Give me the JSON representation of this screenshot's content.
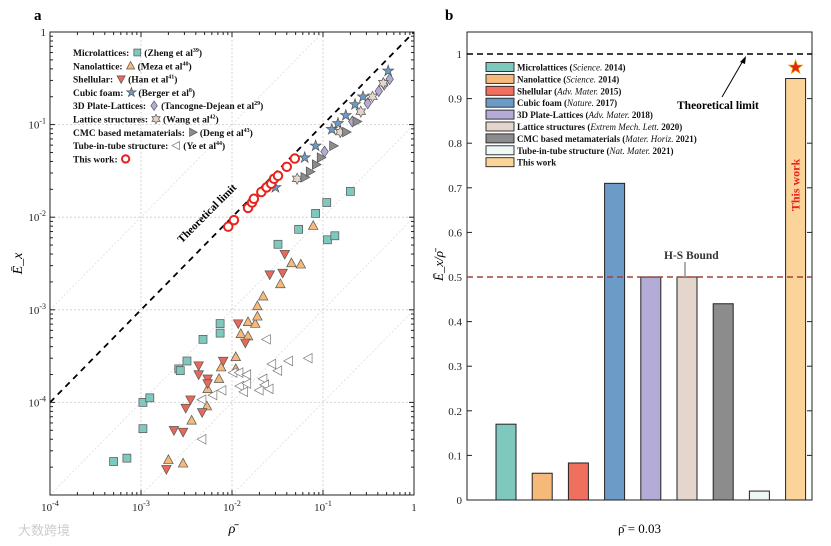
{
  "watermark": "大数跨境",
  "chart_data": [
    {
      "panel": "a",
      "type": "scatter",
      "xscale": "log",
      "yscale": "log",
      "xlim": [
        0.0001,
        1
      ],
      "ylim": [
        1e-05,
        1
      ],
      "xlabel": "ρ̄",
      "ylabel": "Ē_x",
      "xticks": [
        "10^-4",
        "10^-3",
        "10^-2",
        "10^-1",
        "1"
      ],
      "yticks": [
        "10^-4",
        "10^-3",
        "10^-2",
        "10^-1",
        "1"
      ],
      "grid": true,
      "reference_line": {
        "label": "Theoretical limit",
        "equation": "E = ρ"
      },
      "legend_placement": "top-left",
      "series": [
        {
          "name": "Microlattices:",
          "ref": "(Zheng et al",
          "sup": "39",
          "marker": "square",
          "color": "#7fc8bd",
          "points": [
            [
              0.0005,
              2.3e-05
            ],
            [
              0.0007,
              2.5e-05
            ],
            [
              0.00105,
              5.2e-05
            ],
            [
              0.00105,
              0.0001
            ],
            [
              0.00125,
              0.000112
            ],
            [
              0.0026,
              0.00023
            ],
            [
              0.0027,
              0.00022
            ],
            [
              0.0032,
              0.00028
            ],
            [
              0.0048,
              0.00048
            ],
            [
              0.0074,
              0.00056
            ],
            [
              0.0074,
              0.00071
            ],
            [
              0.032,
              0.0051
            ],
            [
              0.054,
              0.0074
            ],
            [
              0.083,
              0.011
            ],
            [
              0.11,
              0.0144
            ],
            [
              0.112,
              0.0057
            ],
            [
              0.135,
              0.0063
            ],
            [
              0.2,
              0.019
            ]
          ]
        },
        {
          "name": "Nanolattice:",
          "ref": "(Meza et al",
          "sup": "40",
          "marker": "triangle-up",
          "color": "#f5b97a",
          "points": [
            [
              0.002,
              2.4e-05
            ],
            [
              0.0029,
              2.2e-05
            ],
            [
              0.0036,
              6.4e-05
            ],
            [
              0.0053,
              9.1e-05
            ],
            [
              0.0054,
              0.00014
            ],
            [
              0.0072,
              0.00018
            ],
            [
              0.0076,
              0.00024
            ],
            [
              0.011,
              0.00031
            ],
            [
              0.011,
              0.00023
            ],
            [
              0.0125,
              0.00055
            ],
            [
              0.015,
              0.00052
            ],
            [
              0.015,
              0.00074
            ],
            [
              0.018,
              0.00071
            ],
            [
              0.019,
              0.00085
            ],
            [
              0.019,
              0.0011
            ],
            [
              0.022,
              0.0014
            ],
            [
              0.034,
              0.0019
            ],
            [
              0.045,
              0.0032
            ],
            [
              0.057,
              0.0031
            ],
            [
              0.078,
              0.0081
            ]
          ]
        },
        {
          "name": "Shellular:",
          "ref": "(Han et al",
          "sup": "41",
          "marker": "triangle-down",
          "color": "#e8685a",
          "points": [
            [
              0.0019,
              1.9e-05
            ],
            [
              0.0023,
              5e-05
            ],
            [
              0.0029,
              4.8e-05
            ],
            [
              0.0031,
              8.7e-05
            ],
            [
              0.0035,
              0.000107
            ],
            [
              0.0047,
              7.8e-05
            ],
            [
              0.0043,
              0.00025
            ],
            [
              0.0043,
              0.0002
            ],
            [
              0.0054,
              0.00018
            ],
            [
              0.0054,
              0.00016
            ],
            [
              0.008,
              0.00028
            ],
            [
              0.0117,
              0.00071
            ],
            [
              0.014,
              0.00044
            ],
            [
              0.026,
              0.0024
            ],
            [
              0.036,
              0.0025
            ],
            [
              0.038,
              0.004
            ]
          ]
        },
        {
          "name": "Cubic foam:",
          "ref": "(Berger et al",
          "sup": "8",
          "marker": "star5",
          "color": "#6c9bc8",
          "points": [
            [
              0.03,
              0.021
            ],
            [
              0.063,
              0.044
            ],
            [
              0.083,
              0.059
            ],
            [
              0.125,
              0.089
            ],
            [
              0.146,
              0.103
            ],
            [
              0.178,
              0.126
            ],
            [
              0.225,
              0.165
            ],
            [
              0.275,
              0.2
            ],
            [
              0.52,
              0.38
            ]
          ]
        },
        {
          "name": "3D Plate-Lattices:",
          "ref": "(Tancogne-Dejean et al",
          "sup": "29",
          "marker": "diamond",
          "color": "#b4acd6",
          "points": [
            [
              0.104,
              0.051
            ],
            [
              0.21,
              0.108
            ],
            [
              0.31,
              0.17
            ],
            [
              0.41,
              0.23
            ],
            [
              0.47,
              0.27
            ],
            [
              0.54,
              0.31
            ]
          ]
        },
        {
          "name": "Lattice structures:",
          "ref": "(Wang et al",
          "sup": "42",
          "marker": "star6",
          "color": "#e4d6cc",
          "points": [
            [
              0.052,
              0.026
            ],
            [
              0.155,
              0.083
            ],
            [
              0.26,
              0.138
            ],
            [
              0.35,
              0.2
            ],
            [
              0.46,
              0.28
            ]
          ]
        },
        {
          "name": "CMC based metamaterials:",
          "ref": "(Deng et al",
          "sup": "43",
          "marker": "triangle-right",
          "color": "#8c8c8c",
          "points": [
            [
              0.063,
              0.027
            ],
            [
              0.072,
              0.031
            ],
            [
              0.084,
              0.037
            ],
            [
              0.095,
              0.044
            ],
            [
              0.13,
              0.059
            ],
            [
              0.18,
              0.083
            ],
            [
              0.235,
              0.108
            ]
          ]
        },
        {
          "name": "Tube-in-tube structure:",
          "ref": "(Ye et al",
          "sup": "44",
          "marker": "triangle-left",
          "color": "#ffffff",
          "points": [
            [
              0.0047,
              4e-05
            ],
            [
              0.0047,
              0.000107
            ],
            [
              0.0062,
              0.00012
            ],
            [
              0.0078,
              0.000135
            ],
            [
              0.0103,
              0.00021
            ],
            [
              0.012,
              0.00021
            ],
            [
              0.0146,
              0.0002
            ],
            [
              0.0122,
              0.00015
            ],
            [
              0.0146,
              0.00016
            ],
            [
              0.0135,
              0.00013
            ],
            [
              0.02,
              0.000135
            ],
            [
              0.022,
              0.00018
            ],
            [
              0.023,
              0.000155
            ],
            [
              0.0257,
              0.00014
            ],
            [
              0.024,
              0.00048
            ],
            [
              0.0275,
              0.00026
            ],
            [
              0.032,
              0.00022
            ],
            [
              0.042,
              0.00028
            ],
            [
              0.069,
              0.0003
            ]
          ]
        },
        {
          "name": "This work:",
          "ref": "",
          "sup": "",
          "marker": "circle",
          "color": "#e8231b",
          "points": [
            [
              0.0091,
              0.0079
            ],
            [
              0.0105,
              0.0093
            ],
            [
              0.015,
              0.0126
            ],
            [
              0.0166,
              0.0144
            ],
            [
              0.0174,
              0.0158
            ],
            [
              0.021,
              0.0187
            ],
            [
              0.024,
              0.021
            ],
            [
              0.027,
              0.023
            ],
            [
              0.029,
              0.026
            ],
            [
              0.032,
              0.028
            ],
            [
              0.04,
              0.035
            ],
            [
              0.049,
              0.043
            ]
          ]
        }
      ]
    },
    {
      "panel": "b",
      "type": "bar",
      "xlabel": "ρ̄ = 0.03",
      "ylabel": "Ē_x/ρ̄",
      "ylim": [
        0,
        1.02
      ],
      "yticks": [
        "0",
        "0.1",
        "0.2",
        "0.3",
        "0.4",
        "0.5",
        "0.6",
        "0.7",
        "0.8",
        "0.9",
        "1"
      ],
      "reference_lines": [
        {
          "label": "Theoretical limit",
          "value": 1,
          "color": "#000000"
        },
        {
          "label": "H-S Bound",
          "value": 0.5,
          "color": "#a0413a"
        }
      ],
      "annotation": "This work",
      "legend_placement": "top-left",
      "categories": [
        {
          "name": "Microlattices",
          "journal": "Science.",
          "year": "2014",
          "value": 0.17,
          "color": "#7fc8bd"
        },
        {
          "name": "Nanolattice",
          "journal": "Science.",
          "year": "2014",
          "value": 0.06,
          "color": "#f5b97a"
        },
        {
          "name": "Shellular",
          "journal": "Adv. Mater.",
          "year": "2015",
          "value": 0.083,
          "color": "#f07060"
        },
        {
          "name": "Cubic foam",
          "journal": "Nature.",
          "year": "2017",
          "value": 0.71,
          "color": "#6c9bc8"
        },
        {
          "name": "3D Plate-Lattices",
          "journal": "Adv. Mater.",
          "year": "2018",
          "value": 0.5,
          "color": "#b4acd6"
        },
        {
          "name": "Lattice structures",
          "journal": "Extrem Mech. Lett.",
          "year": "2020",
          "value": 0.5,
          "color": "#e4d6cc"
        },
        {
          "name": "CMC based metamaterials",
          "journal": "Mater. Horiz.",
          "year": "2021",
          "value": 0.44,
          "color": "#8c8c8c"
        },
        {
          "name": "Tube-in-tube structure",
          "journal": "Nat. Mater.",
          "year": "2021",
          "value": 0.02,
          "color": "#eef8f4"
        },
        {
          "name": "This work",
          "journal": "",
          "year": "",
          "value": 0.945,
          "color": "#fbd49a"
        }
      ]
    }
  ]
}
